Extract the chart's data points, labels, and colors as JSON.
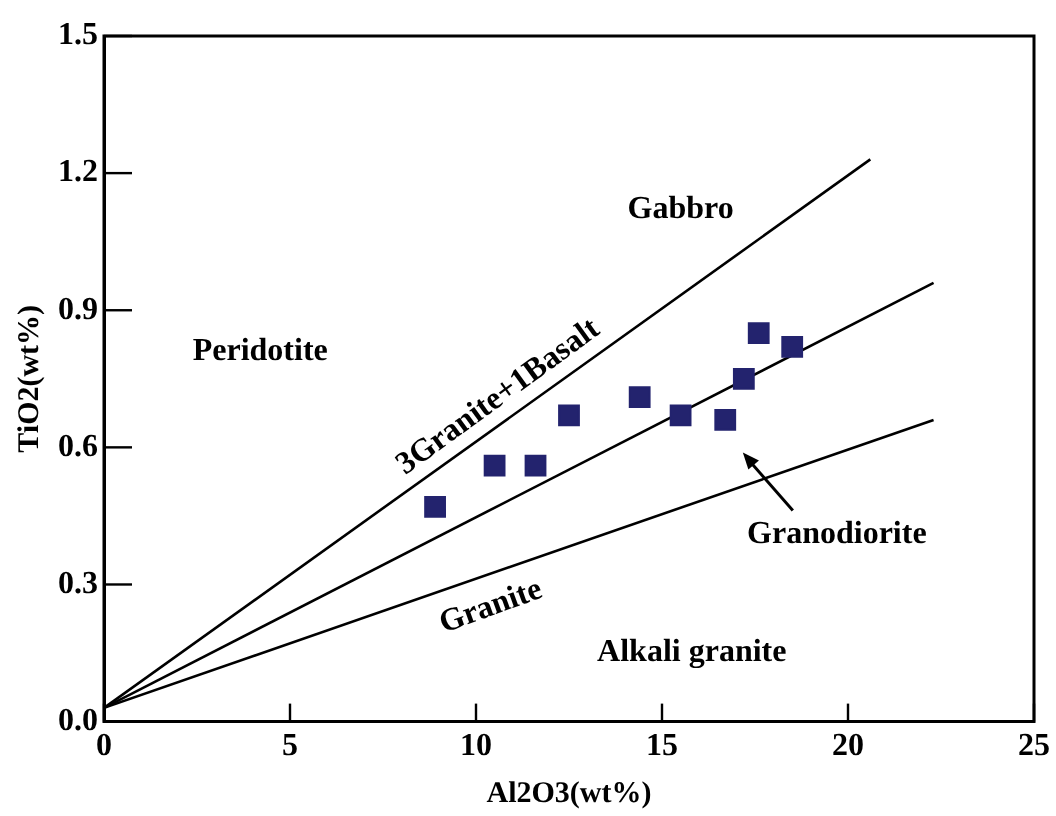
{
  "chart_data": {
    "type": "scatter",
    "xlabel": "Al2O3(wt%)",
    "ylabel": "TiO2(wt%)",
    "xlim": [
      0,
      25
    ],
    "xticks": [
      0,
      5,
      10,
      15,
      20,
      25
    ],
    "ylim": [
      0,
      1.5
    ],
    "yticks": [
      {
        "value": 0,
        "label": "0.0"
      },
      0.3,
      0.6,
      0.9,
      1.2,
      1.5
    ],
    "grid": false,
    "legend": false,
    "marker": "square",
    "series": [
      {
        "color": "#23236e",
        "x": [
          8.9,
          10.5,
          11.6,
          12.5,
          14.4,
          15.5,
          16.7,
          17.2,
          17.6,
          18.5
        ],
        "values": [
          0.47,
          0.56,
          0.56,
          0.67,
          0.71,
          0.67,
          0.66,
          0.75,
          0.85,
          0.82
        ]
      },
      {
        "type": "line",
        "color": "#000000",
        "marker": "none",
        "x": [
          0,
          20.6
        ],
        "values": [
          0.03,
          1.23
        ]
      },
      {
        "type": "line",
        "color": "#000000",
        "marker": "none",
        "x": [
          0,
          22.3
        ],
        "values": [
          0.03,
          0.96
        ]
      },
      {
        "type": "line",
        "color": "#000000",
        "marker": "none",
        "x": [
          0,
          22.3
        ],
        "values": [
          0.03,
          0.66
        ]
      }
    ],
    "annotations": [
      "Gabbro",
      "Peridotite",
      "3Granite+1Basalt",
      "Granodiorite",
      "Granite",
      "Alkali granite"
    ]
  }
}
